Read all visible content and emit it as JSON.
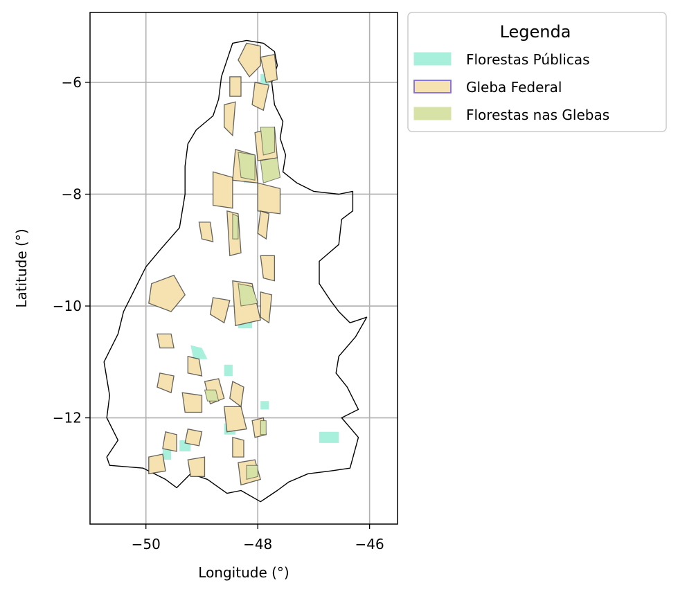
{
  "chart_data": {
    "type": "map",
    "xlabel": "Longitude (°)",
    "ylabel": "Latitude (°)",
    "xlim": [
      -51.0,
      -45.5
    ],
    "ylim": [
      -13.9,
      -4.75
    ],
    "x_ticks": [
      -50,
      -48,
      -46
    ],
    "y_ticks": [
      -6,
      -8,
      -10,
      -12
    ],
    "x_tick_labels": [
      "−50",
      "−48",
      "−46"
    ],
    "y_tick_labels": [
      "−6",
      "−8",
      "−10",
      "−12"
    ],
    "grid": true,
    "legend": {
      "title": "Legenda",
      "placement": "outside-upper-right",
      "items": [
        {
          "label": "Florestas Públicas",
          "fill": "#a8f0dc",
          "edge": "#a8f0dc"
        },
        {
          "label": "Gleba Federal",
          "fill": "#f5e2b0",
          "edge": "#7b68ee"
        },
        {
          "label": "Florestas nas Glebas",
          "fill": "#d7e3a6",
          "edge": "#d7e3a6"
        }
      ]
    },
    "boundary": [
      [
        -48.2,
        -5.25
      ],
      [
        -47.9,
        -5.3
      ],
      [
        -47.7,
        -5.45
      ],
      [
        -47.65,
        -5.7
      ],
      [
        -47.75,
        -6.0
      ],
      [
        -47.7,
        -6.4
      ],
      [
        -47.55,
        -6.7
      ],
      [
        -47.6,
        -7.0
      ],
      [
        -47.5,
        -7.3
      ],
      [
        -47.55,
        -7.6
      ],
      [
        -47.3,
        -7.8
      ],
      [
        -47.0,
        -7.95
      ],
      [
        -46.55,
        -8.0
      ],
      [
        -46.3,
        -7.95
      ],
      [
        -46.3,
        -8.3
      ],
      [
        -46.5,
        -8.45
      ],
      [
        -46.55,
        -8.9
      ],
      [
        -46.9,
        -9.2
      ],
      [
        -46.9,
        -9.6
      ],
      [
        -46.7,
        -9.9
      ],
      [
        -46.55,
        -10.1
      ],
      [
        -46.35,
        -10.3
      ],
      [
        -46.05,
        -10.2
      ],
      [
        -46.25,
        -10.55
      ],
      [
        -46.55,
        -10.9
      ],
      [
        -46.6,
        -11.2
      ],
      [
        -46.4,
        -11.45
      ],
      [
        -46.2,
        -11.85
      ],
      [
        -46.5,
        -12.0
      ],
      [
        -46.2,
        -12.35
      ],
      [
        -46.35,
        -12.9
      ],
      [
        -46.7,
        -12.95
      ],
      [
        -47.1,
        -13.0
      ],
      [
        -47.45,
        -13.15
      ],
      [
        -47.65,
        -13.3
      ],
      [
        -47.95,
        -13.5
      ],
      [
        -48.3,
        -13.3
      ],
      [
        -48.55,
        -13.35
      ],
      [
        -48.9,
        -13.1
      ],
      [
        -49.2,
        -13.0
      ],
      [
        -49.45,
        -13.25
      ],
      [
        -49.65,
        -13.1
      ],
      [
        -50.05,
        -12.9
      ],
      [
        -50.65,
        -12.85
      ],
      [
        -50.7,
        -12.7
      ],
      [
        -50.5,
        -12.4
      ],
      [
        -50.7,
        -12.0
      ],
      [
        -50.65,
        -11.6
      ],
      [
        -50.75,
        -11.0
      ],
      [
        -50.5,
        -10.5
      ],
      [
        -50.4,
        -10.1
      ],
      [
        -50.2,
        -9.7
      ],
      [
        -50.0,
        -9.3
      ],
      [
        -49.75,
        -9.0
      ],
      [
        -49.4,
        -8.6
      ],
      [
        -49.3,
        -8.0
      ],
      [
        -49.3,
        -7.5
      ],
      [
        -49.25,
        -7.1
      ],
      [
        -49.1,
        -6.85
      ],
      [
        -48.8,
        -6.6
      ],
      [
        -48.7,
        -6.3
      ],
      [
        -48.65,
        -5.9
      ],
      [
        -48.55,
        -5.6
      ],
      [
        -48.45,
        -5.3
      ],
      [
        -48.2,
        -5.25
      ]
    ],
    "gleba_federal_polygons": [
      [
        [
          -48.2,
          -5.3
        ],
        [
          -47.95,
          -5.35
        ],
        [
          -47.95,
          -5.7
        ],
        [
          -48.15,
          -5.9
        ],
        [
          -48.35,
          -5.6
        ]
      ],
      [
        [
          -47.95,
          -5.55
        ],
        [
          -47.7,
          -5.5
        ],
        [
          -47.65,
          -5.95
        ],
        [
          -47.85,
          -6.0
        ]
      ],
      [
        [
          -48.5,
          -5.9
        ],
        [
          -48.3,
          -5.9
        ],
        [
          -48.3,
          -6.25
        ],
        [
          -48.5,
          -6.25
        ]
      ],
      [
        [
          -48.05,
          -6.0
        ],
        [
          -47.8,
          -6.05
        ],
        [
          -47.9,
          -6.5
        ],
        [
          -48.1,
          -6.4
        ]
      ],
      [
        [
          -48.6,
          -6.4
        ],
        [
          -48.4,
          -6.35
        ],
        [
          -48.45,
          -6.95
        ],
        [
          -48.6,
          -6.8
        ]
      ],
      [
        [
          -48.05,
          -6.9
        ],
        [
          -47.7,
          -6.8
        ],
        [
          -47.65,
          -7.35
        ],
        [
          -48.0,
          -7.4
        ]
      ],
      [
        [
          -48.4,
          -7.2
        ],
        [
          -48.05,
          -7.3
        ],
        [
          -48.0,
          -7.8
        ],
        [
          -48.45,
          -7.75
        ]
      ],
      [
        [
          -48.8,
          -7.6
        ],
        [
          -48.45,
          -7.7
        ],
        [
          -48.45,
          -8.25
        ],
        [
          -48.8,
          -8.2
        ]
      ],
      [
        [
          -48.0,
          -7.8
        ],
        [
          -47.6,
          -7.9
        ],
        [
          -47.6,
          -8.35
        ],
        [
          -48.0,
          -8.3
        ]
      ],
      [
        [
          -48.55,
          -8.3
        ],
        [
          -48.35,
          -8.35
        ],
        [
          -48.3,
          -9.05
        ],
        [
          -48.5,
          -9.1
        ]
      ],
      [
        [
          -49.05,
          -8.5
        ],
        [
          -48.85,
          -8.5
        ],
        [
          -48.8,
          -8.85
        ],
        [
          -49.0,
          -8.8
        ]
      ],
      [
        [
          -47.95,
          -8.3
        ],
        [
          -47.8,
          -8.35
        ],
        [
          -47.85,
          -8.8
        ],
        [
          -48.0,
          -8.7
        ]
      ],
      [
        [
          -49.9,
          -9.6
        ],
        [
          -49.5,
          -9.45
        ],
        [
          -49.3,
          -9.8
        ],
        [
          -49.55,
          -10.1
        ],
        [
          -49.95,
          -9.95
        ]
      ],
      [
        [
          -48.45,
          -9.55
        ],
        [
          -48.1,
          -9.6
        ],
        [
          -47.95,
          -10.25
        ],
        [
          -48.4,
          -10.35
        ]
      ],
      [
        [
          -48.8,
          -9.85
        ],
        [
          -48.5,
          -9.9
        ],
        [
          -48.6,
          -10.3
        ],
        [
          -48.85,
          -10.15
        ]
      ],
      [
        [
          -47.95,
          -9.75
        ],
        [
          -47.75,
          -9.8
        ],
        [
          -47.8,
          -10.3
        ],
        [
          -47.95,
          -10.2
        ]
      ],
      [
        [
          -47.95,
          -9.1
        ],
        [
          -47.7,
          -9.1
        ],
        [
          -47.7,
          -9.55
        ],
        [
          -47.9,
          -9.5
        ]
      ],
      [
        [
          -49.8,
          -10.5
        ],
        [
          -49.55,
          -10.5
        ],
        [
          -49.5,
          -10.75
        ],
        [
          -49.75,
          -10.75
        ]
      ],
      [
        [
          -49.25,
          -10.9
        ],
        [
          -49.05,
          -10.95
        ],
        [
          -49.0,
          -11.25
        ],
        [
          -49.25,
          -11.2
        ]
      ],
      [
        [
          -48.95,
          -11.35
        ],
        [
          -48.7,
          -11.3
        ],
        [
          -48.6,
          -11.65
        ],
        [
          -48.85,
          -11.75
        ]
      ],
      [
        [
          -49.75,
          -11.2
        ],
        [
          -49.5,
          -11.25
        ],
        [
          -49.55,
          -11.55
        ],
        [
          -49.8,
          -11.45
        ]
      ],
      [
        [
          -49.35,
          -11.55
        ],
        [
          -49.0,
          -11.6
        ],
        [
          -49.0,
          -11.9
        ],
        [
          -49.3,
          -11.9
        ]
      ],
      [
        [
          -48.45,
          -11.35
        ],
        [
          -48.25,
          -11.45
        ],
        [
          -48.3,
          -11.8
        ],
        [
          -48.5,
          -11.65
        ]
      ],
      [
        [
          -48.6,
          -11.8
        ],
        [
          -48.3,
          -11.8
        ],
        [
          -48.2,
          -12.2
        ],
        [
          -48.55,
          -12.25
        ]
      ],
      [
        [
          -49.25,
          -12.2
        ],
        [
          -49.0,
          -12.25
        ],
        [
          -49.05,
          -12.5
        ],
        [
          -49.3,
          -12.45
        ]
      ],
      [
        [
          -49.65,
          -12.25
        ],
        [
          -49.45,
          -12.3
        ],
        [
          -49.45,
          -12.6
        ],
        [
          -49.7,
          -12.55
        ]
      ],
      [
        [
          -48.1,
          -12.05
        ],
        [
          -47.9,
          -12.0
        ],
        [
          -47.85,
          -12.3
        ],
        [
          -48.05,
          -12.35
        ]
      ],
      [
        [
          -48.45,
          -12.35
        ],
        [
          -48.25,
          -12.4
        ],
        [
          -48.25,
          -12.7
        ],
        [
          -48.45,
          -12.7
        ]
      ],
      [
        [
          -49.25,
          -12.75
        ],
        [
          -48.95,
          -12.7
        ],
        [
          -48.95,
          -13.05
        ],
        [
          -49.2,
          -13.05
        ]
      ],
      [
        [
          -49.95,
          -12.7
        ],
        [
          -49.7,
          -12.65
        ],
        [
          -49.65,
          -12.95
        ],
        [
          -49.95,
          -13.0
        ]
      ],
      [
        [
          -48.35,
          -12.8
        ],
        [
          -48.05,
          -12.75
        ],
        [
          -47.95,
          -13.1
        ],
        [
          -48.3,
          -13.2
        ]
      ]
    ],
    "florestas_glebas_polygons": [
      [
        [
          -47.95,
          -6.8
        ],
        [
          -47.7,
          -6.8
        ],
        [
          -47.7,
          -7.25
        ],
        [
          -47.9,
          -7.3
        ]
      ],
      [
        [
          -48.35,
          -7.25
        ],
        [
          -48.05,
          -7.3
        ],
        [
          -48.05,
          -7.75
        ],
        [
          -48.3,
          -7.7
        ]
      ],
      [
        [
          -47.95,
          -7.4
        ],
        [
          -47.65,
          -7.35
        ],
        [
          -47.6,
          -7.7
        ],
        [
          -47.9,
          -7.8
        ]
      ],
      [
        [
          -48.35,
          -9.6
        ],
        [
          -48.1,
          -9.65
        ],
        [
          -48.0,
          -9.95
        ],
        [
          -48.3,
          -10.0
        ]
      ],
      [
        [
          -47.95,
          -12.05
        ],
        [
          -47.85,
          -12.05
        ],
        [
          -47.85,
          -12.3
        ],
        [
          -47.95,
          -12.3
        ]
      ],
      [
        [
          -48.2,
          -12.85
        ],
        [
          -48.0,
          -12.85
        ],
        [
          -48.0,
          -13.05
        ],
        [
          -48.2,
          -13.1
        ]
      ],
      [
        [
          -48.95,
          -11.5
        ],
        [
          -48.75,
          -11.5
        ],
        [
          -48.7,
          -11.7
        ],
        [
          -48.9,
          -11.7
        ]
      ],
      [
        [
          -48.45,
          -8.35
        ],
        [
          -48.35,
          -8.4
        ],
        [
          -48.35,
          -8.8
        ],
        [
          -48.45,
          -8.8
        ]
      ]
    ],
    "florestas_publicas_polygons": [
      [
        [
          -47.95,
          -5.85
        ],
        [
          -47.8,
          -5.85
        ],
        [
          -47.8,
          -6.05
        ],
        [
          -47.95,
          -6.05
        ]
      ],
      [
        [
          -48.35,
          -10.05
        ],
        [
          -48.1,
          -10.05
        ],
        [
          -48.1,
          -10.4
        ],
        [
          -48.35,
          -10.4
        ]
      ],
      [
        [
          -49.2,
          -10.7
        ],
        [
          -49.0,
          -10.75
        ],
        [
          -48.9,
          -10.95
        ],
        [
          -49.15,
          -10.95
        ]
      ],
      [
        [
          -48.6,
          -11.05
        ],
        [
          -48.45,
          -11.05
        ],
        [
          -48.45,
          -11.25
        ],
        [
          -48.6,
          -11.25
        ]
      ],
      [
        [
          -48.6,
          -12.1
        ],
        [
          -48.4,
          -12.1
        ],
        [
          -48.4,
          -12.3
        ],
        [
          -48.6,
          -12.3
        ]
      ],
      [
        [
          -47.95,
          -11.7
        ],
        [
          -47.8,
          -11.7
        ],
        [
          -47.8,
          -11.85
        ],
        [
          -47.95,
          -11.85
        ]
      ],
      [
        [
          -46.9,
          -12.25
        ],
        [
          -46.55,
          -12.25
        ],
        [
          -46.55,
          -12.45
        ],
        [
          -46.9,
          -12.45
        ]
      ],
      [
        [
          -49.4,
          -12.4
        ],
        [
          -49.2,
          -12.4
        ],
        [
          -49.2,
          -12.6
        ],
        [
          -49.4,
          -12.6
        ]
      ],
      [
        [
          -49.7,
          -12.55
        ],
        [
          -49.55,
          -12.55
        ],
        [
          -49.55,
          -12.75
        ],
        [
          -49.7,
          -12.75
        ]
      ],
      [
        [
          -48.25,
          -7.5
        ],
        [
          -48.05,
          -7.5
        ],
        [
          -48.05,
          -7.8
        ],
        [
          -48.25,
          -7.8
        ]
      ]
    ]
  }
}
